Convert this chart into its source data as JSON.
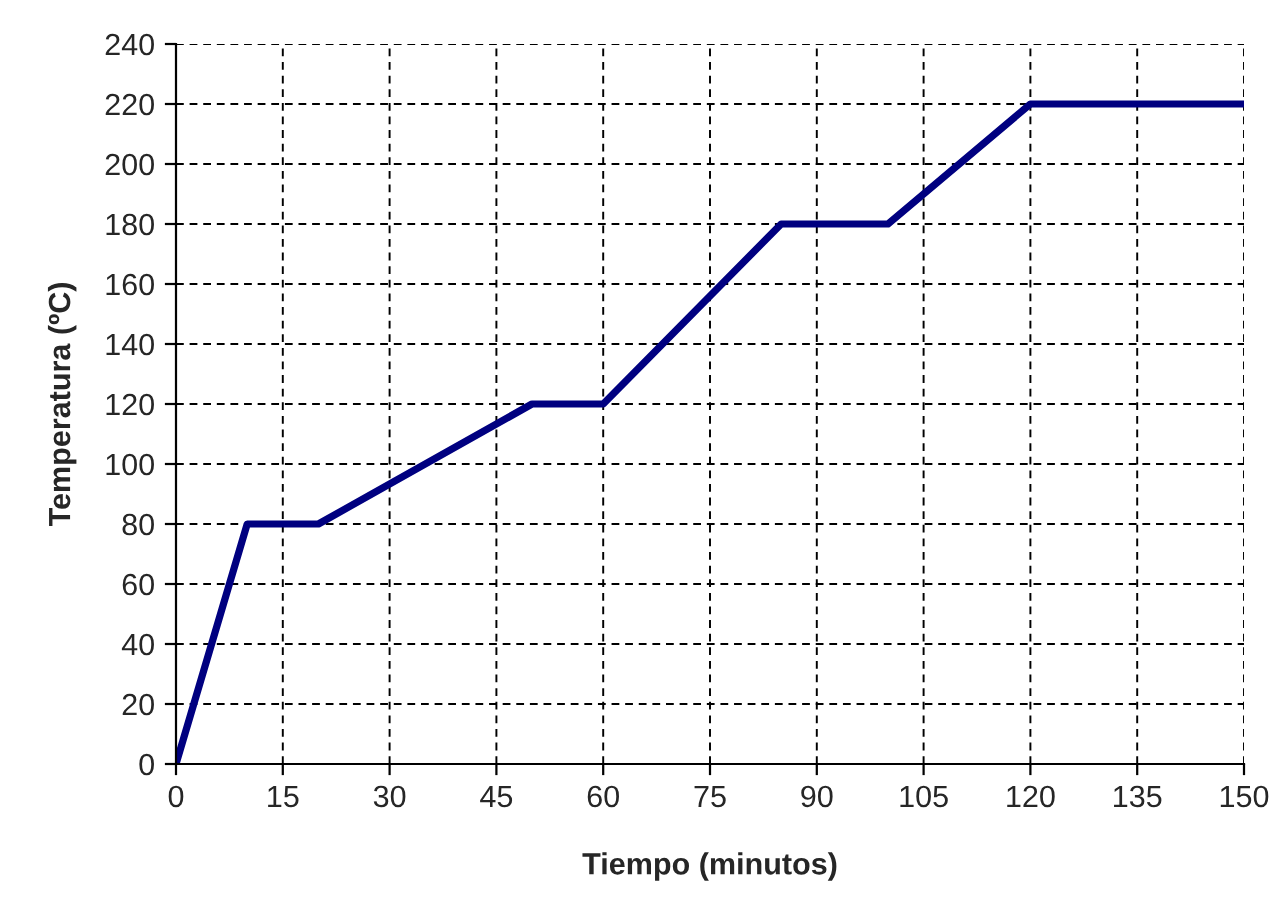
{
  "chart_data": {
    "type": "line",
    "xlabel": "Tiempo (minutos)",
    "ylabel": "Temperatura (ºC)",
    "x": [
      0,
      10,
      20,
      50,
      60,
      85,
      100,
      120,
      150
    ],
    "series": [
      {
        "color": "#000080",
        "values": [
          0,
          80,
          80,
          120,
          120,
          180,
          180,
          220,
          220
        ]
      }
    ],
    "xlim": [
      0,
      150
    ],
    "xticks": [
      0,
      15,
      30,
      45,
      60,
      75,
      90,
      105,
      120,
      135,
      150
    ],
    "ylim": [
      0,
      240
    ],
    "yticks": [
      0,
      20,
      40,
      60,
      80,
      100,
      120,
      140,
      160,
      180,
      200,
      220,
      240
    ],
    "grid": true,
    "marker": "none",
    "line_style": "solid"
  }
}
